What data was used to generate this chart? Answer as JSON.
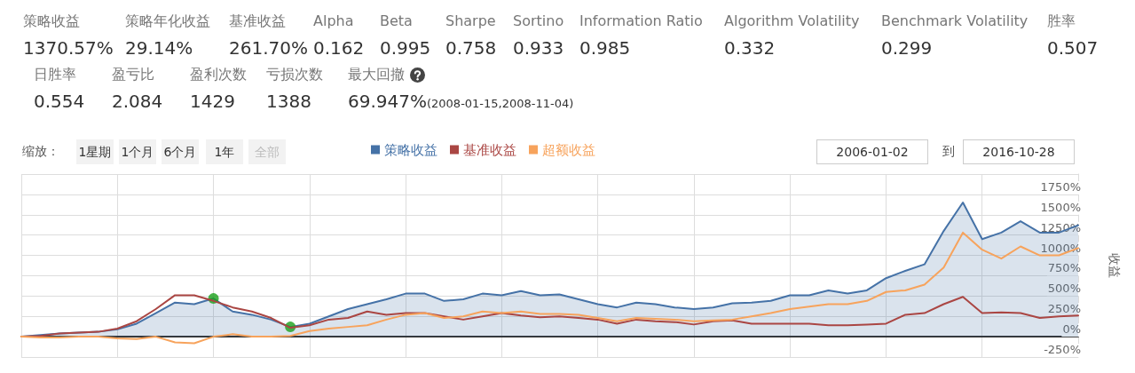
{
  "chart_data": {
    "type": "line",
    "ylabel": "收益",
    "categories": [
      null,
      null,
      null,
      null,
      null,
      null,
      null,
      null,
      null,
      null,
      null,
      null,
      null,
      null,
      null,
      null,
      null,
      null,
      null,
      null,
      null,
      null,
      null,
      null,
      null,
      null,
      null,
      null,
      null,
      null,
      null,
      null,
      null,
      null,
      null,
      null,
      null,
      null,
      null,
      null,
      null,
      null,
      null,
      null,
      null,
      null,
      null,
      null,
      null,
      null,
      null,
      null,
      null,
      null,
      null,
      null
    ],
    "series": [
      {
        "name": "策略收益",
        "type": "area",
        "color": "#4572a7",
        "values": [
          0,
          20,
          40,
          50,
          60,
          90,
          160,
          290,
          420,
          400,
          470,
          310,
          270,
          210,
          120,
          160,
          250,
          340,
          400,
          460,
          530,
          530,
          440,
          460,
          530,
          510,
          560,
          510,
          520,
          460,
          400,
          360,
          420,
          400,
          360,
          340,
          360,
          410,
          420,
          440,
          510,
          510,
          570,
          530,
          570,
          720,
          810,
          890,
          1300,
          1650,
          1200,
          1280,
          1420,
          1280,
          1280,
          1370
        ]
      },
      {
        "name": "基准收益",
        "color": "#aa4643",
        "values": [
          0,
          10,
          40,
          50,
          60,
          100,
          190,
          340,
          510,
          510,
          440,
          360,
          310,
          230,
          110,
          140,
          210,
          230,
          310,
          270,
          290,
          290,
          250,
          210,
          250,
          290,
          260,
          240,
          250,
          230,
          210,
          160,
          210,
          190,
          180,
          150,
          190,
          200,
          160,
          160,
          160,
          160,
          140,
          140,
          150,
          160,
          270,
          290,
          400,
          490,
          290,
          300,
          290,
          230,
          250,
          260
        ]
      },
      {
        "name": "超额收益",
        "color": "#f7a35c",
        "values": [
          0,
          -10,
          -10,
          0,
          0,
          -20,
          -30,
          0,
          -70,
          -80,
          0,
          30,
          0,
          0,
          10,
          70,
          100,
          120,
          140,
          210,
          270,
          290,
          230,
          250,
          310,
          290,
          310,
          280,
          280,
          270,
          230,
          190,
          230,
          220,
          210,
          190,
          200,
          210,
          250,
          290,
          340,
          370,
          400,
          400,
          440,
          550,
          570,
          640,
          850,
          1280,
          1070,
          960,
          1110,
          1000,
          1000,
          1090
        ]
      },
      {
        "type": "scatter",
        "marker": "circle",
        "color": "#1aa01a",
        "values": [
          null,
          null,
          null,
          null,
          null,
          null,
          null,
          null,
          null,
          null,
          470,
          null,
          null,
          null,
          120,
          null,
          null,
          null,
          null,
          null,
          null,
          null,
          null,
          null,
          null,
          null,
          null,
          null,
          null,
          null,
          null,
          null,
          null,
          null,
          null,
          null,
          null,
          null,
          null,
          null,
          null,
          null,
          null,
          null,
          null,
          null,
          null,
          null,
          null,
          null,
          null,
          null,
          null,
          null,
          null,
          null
        ]
      }
    ],
    "ylim": [
      -250,
      2000
    ],
    "yticks": [
      {
        "value": -250,
        "label": "-250%"
      },
      {
        "value": 0,
        "label": "0%"
      },
      {
        "value": 250,
        "label": "250%"
      },
      {
        "value": 500,
        "label": "500%"
      },
      {
        "value": 750,
        "label": "750%"
      },
      {
        "value": 1000,
        "label": "1000%"
      },
      {
        "value": 1250,
        "label": "1250%"
      },
      {
        "value": 1500,
        "label": "1500%"
      },
      {
        "value": 1750,
        "label": "1750%"
      },
      {
        "value": 2000,
        "label": null
      }
    ],
    "grid": true,
    "legend": "top",
    "tick_labels": "y",
    "line_style": "solid",
    "annotations": [
      "策略收益",
      "1370.57%",
      "策略年化收益",
      "29.14%",
      "基准收益",
      "261.70%",
      "Alpha",
      "0.162",
      "Beta",
      "0.995",
      "Sharpe",
      "0.758",
      "Sortino",
      "0.933",
      "Information Ratio",
      "0.985",
      "Algorithm Volatility",
      "0.332",
      "Benchmark Volatility",
      "0.299",
      "胜率",
      "0.507",
      "日胜率",
      "0.554",
      "盈亏比",
      "2.084",
      "盈利次数",
      "1429",
      "亏损次数",
      "1388",
      "最大回撤",
      "69.947%",
      "(2008-01-15,2008-11-04)",
      "缩放：",
      "1星期",
      "1个月",
      "6个月",
      "1年",
      "全部",
      "到",
      "2006-01-02",
      "2016-10-28"
    ]
  }
}
